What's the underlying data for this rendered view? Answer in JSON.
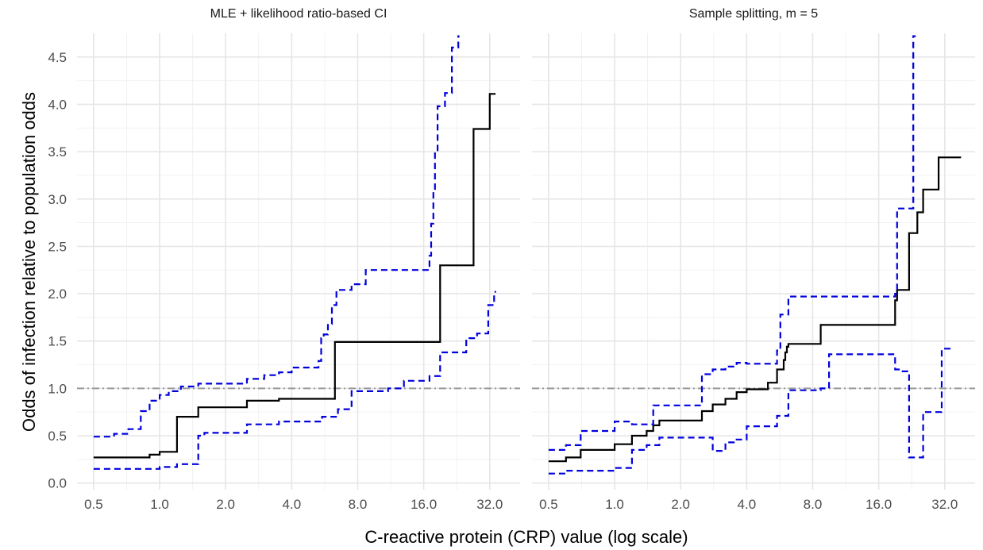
{
  "chart_data": {
    "type": "line",
    "xlabel": "C-reactive protein (CRP) value (log scale)",
    "ylabel": "Odds of infection relative to population odds",
    "x_scale": "log2",
    "xlim": [
      0.42,
      44
    ],
    "ylim": [
      -0.07,
      4.75
    ],
    "x_ticks": [
      0.5,
      1,
      2,
      4,
      8,
      16,
      32
    ],
    "x_tick_labels": [
      "0.5",
      "1.0",
      "2.0",
      "4.0",
      "8.0",
      "16.0",
      "32.0"
    ],
    "y_ticks": [
      0,
      0.5,
      1,
      1.5,
      2,
      2.5,
      3,
      3.5,
      4,
      4.5
    ],
    "y_tick_labels": [
      "0.0",
      "0.5",
      "1.0",
      "1.5",
      "2.0",
      "2.5",
      "3.0",
      "3.5",
      "4.0",
      "4.5"
    ],
    "grid": true,
    "reference_line": {
      "y": 1.0,
      "style": "dashdot",
      "color": "#999999"
    },
    "colors": {
      "estimate": "#000000",
      "ci": "#0000dd"
    },
    "panels": [
      {
        "title": "MLE + likelihood ratio-based CI",
        "series": [
          {
            "role": "estimate",
            "x": [
              0.5,
              0.9,
              1.0,
              1.2,
              1.5,
              2.5,
              3.5,
              6.3,
              19.0,
              27.0,
              32.0,
              34.0
            ],
            "y": [
              0.27,
              0.3,
              0.33,
              0.7,
              0.8,
              0.87,
              0.89,
              1.49,
              2.3,
              3.74,
              4.11,
              4.11
            ]
          },
          {
            "role": "ci-upper",
            "x": [
              0.5,
              0.62,
              0.72,
              0.82,
              0.9,
              1.0,
              1.1,
              1.25,
              1.5,
              2.5,
              3.0,
              3.5,
              4.0,
              5.3,
              5.45,
              5.6,
              5.85,
              6.1,
              6.4,
              7.5,
              8.7,
              17.0,
              17.3,
              17.7,
              18.0,
              18.5,
              20.0,
              21.5,
              23.0,
              23.3
            ],
            "y": [
              0.49,
              0.52,
              0.57,
              0.76,
              0.87,
              0.93,
              0.97,
              1.02,
              1.05,
              1.1,
              1.14,
              1.17,
              1.22,
              1.29,
              1.53,
              1.57,
              1.68,
              1.88,
              2.04,
              2.1,
              2.25,
              2.4,
              2.74,
              3.09,
              3.5,
              3.98,
              4.12,
              4.6,
              4.72,
              4.72
            ]
          },
          {
            "role": "ci-lower",
            "x": [
              0.5,
              1.0,
              1.2,
              1.5,
              1.6,
              2.5,
              3.5,
              5.5,
              6.5,
              7.5,
              11.0,
              13.0,
              17.0,
              19.0,
              25.0,
              28.0,
              31.5,
              33.5,
              34.2
            ],
            "y": [
              0.15,
              0.17,
              0.2,
              0.5,
              0.53,
              0.62,
              0.65,
              0.7,
              0.78,
              0.97,
              1.0,
              1.08,
              1.13,
              1.38,
              1.53,
              1.58,
              1.88,
              2.02,
              2.02
            ]
          }
        ]
      },
      {
        "title": "Sample splitting, m = 5",
        "series": [
          {
            "role": "estimate",
            "x": [
              0.5,
              0.6,
              0.7,
              1.0,
              1.2,
              1.4,
              1.5,
              1.6,
              2.5,
              2.8,
              3.2,
              3.6,
              4.0,
              5.0,
              5.5,
              5.9,
              6.0,
              6.1,
              6.2,
              8.7,
              19.0,
              19.4,
              20.0,
              22.0,
              24.0,
              25.5,
              30.0,
              38.0
            ],
            "y": [
              0.23,
              0.27,
              0.35,
              0.41,
              0.5,
              0.55,
              0.61,
              0.66,
              0.76,
              0.83,
              0.89,
              0.96,
              0.99,
              1.06,
              1.2,
              1.3,
              1.38,
              1.44,
              1.47,
              1.67,
              1.93,
              2.04,
              2.04,
              2.64,
              2.86,
              3.1,
              3.44,
              3.44
            ]
          },
          {
            "role": "ci-upper",
            "x": [
              0.5,
              0.6,
              0.7,
              1.0,
              1.2,
              1.5,
              1.6,
              2.5,
              2.8,
              3.2,
              3.6,
              4.0,
              5.0,
              5.5,
              5.7,
              6.2,
              8.7,
              19.0,
              19.4,
              20.0,
              23.0,
              23.6
            ],
            "y": [
              0.35,
              0.4,
              0.55,
              0.65,
              0.62,
              0.82,
              0.82,
              1.15,
              1.2,
              1.23,
              1.27,
              1.26,
              1.26,
              1.4,
              1.78,
              1.97,
              1.97,
              2.0,
              2.9,
              2.9,
              4.72,
              4.72
            ]
          },
          {
            "role": "ci-lower",
            "x": [
              0.5,
              0.6,
              1.0,
              1.2,
              1.4,
              1.6,
              2.5,
              2.8,
              3.2,
              3.6,
              4.0,
              5.5,
              6.2,
              8.7,
              9.5,
              19.0,
              20.0,
              22.0,
              24.0,
              25.5,
              29.0,
              31.0,
              34.0
            ],
            "y": [
              0.1,
              0.13,
              0.16,
              0.35,
              0.4,
              0.48,
              0.48,
              0.34,
              0.43,
              0.46,
              0.6,
              0.71,
              0.98,
              1.0,
              1.36,
              1.2,
              1.18,
              0.27,
              0.27,
              0.75,
              0.75,
              1.42,
              1.42
            ]
          }
        ]
      }
    ]
  }
}
